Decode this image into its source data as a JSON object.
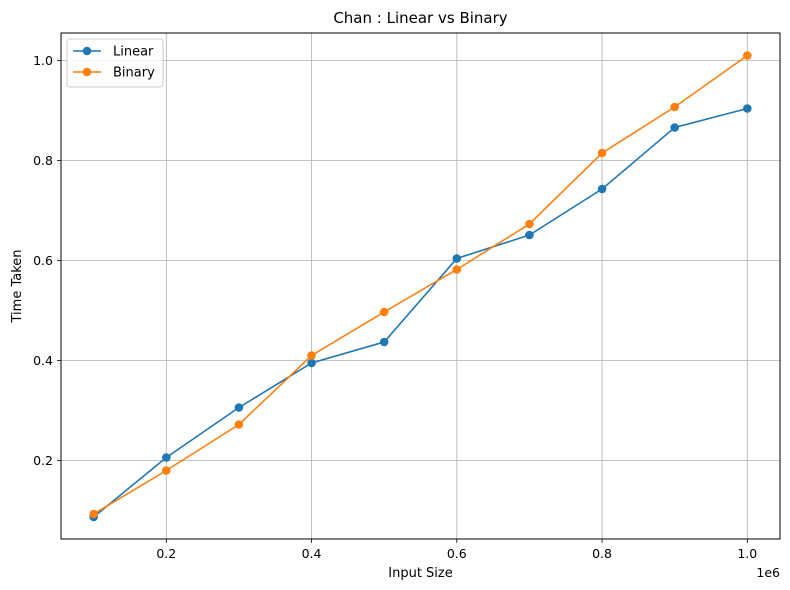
{
  "chart_data": {
    "type": "line",
    "title": "Chan : Linear vs Binary",
    "xlabel": "Input Size",
    "ylabel": "Time Taken",
    "x_offset_label": "1e6",
    "x": [
      100000,
      200000,
      300000,
      400000,
      500000,
      600000,
      700000,
      800000,
      900000,
      1000000
    ],
    "xlim": [
      55000,
      1045000
    ],
    "ylim": [
      0.043,
      1.055
    ],
    "x_ticks": [
      200000,
      400000,
      600000,
      800000,
      1000000
    ],
    "x_tick_labels": [
      "0.2",
      "0.4",
      "0.6",
      "0.8",
      "1.0"
    ],
    "y_ticks": [
      0.2,
      0.4,
      0.6,
      0.8,
      1.0
    ],
    "y_tick_labels": [
      "0.2",
      "0.4",
      "0.6",
      "0.8",
      "1.0"
    ],
    "grid": true,
    "legend_position": "top-left",
    "series": [
      {
        "name": "Linear",
        "color": "#1f77b4",
        "marker": "circle",
        "values": [
          0.087,
          0.206,
          0.306,
          0.395,
          0.437,
          0.604,
          0.651,
          0.743,
          0.866,
          0.904
        ]
      },
      {
        "name": "Binary",
        "color": "#ff7f0e",
        "marker": "circle",
        "values": [
          0.093,
          0.18,
          0.272,
          0.41,
          0.497,
          0.582,
          0.673,
          0.815,
          0.907,
          1.01
        ]
      }
    ]
  }
}
